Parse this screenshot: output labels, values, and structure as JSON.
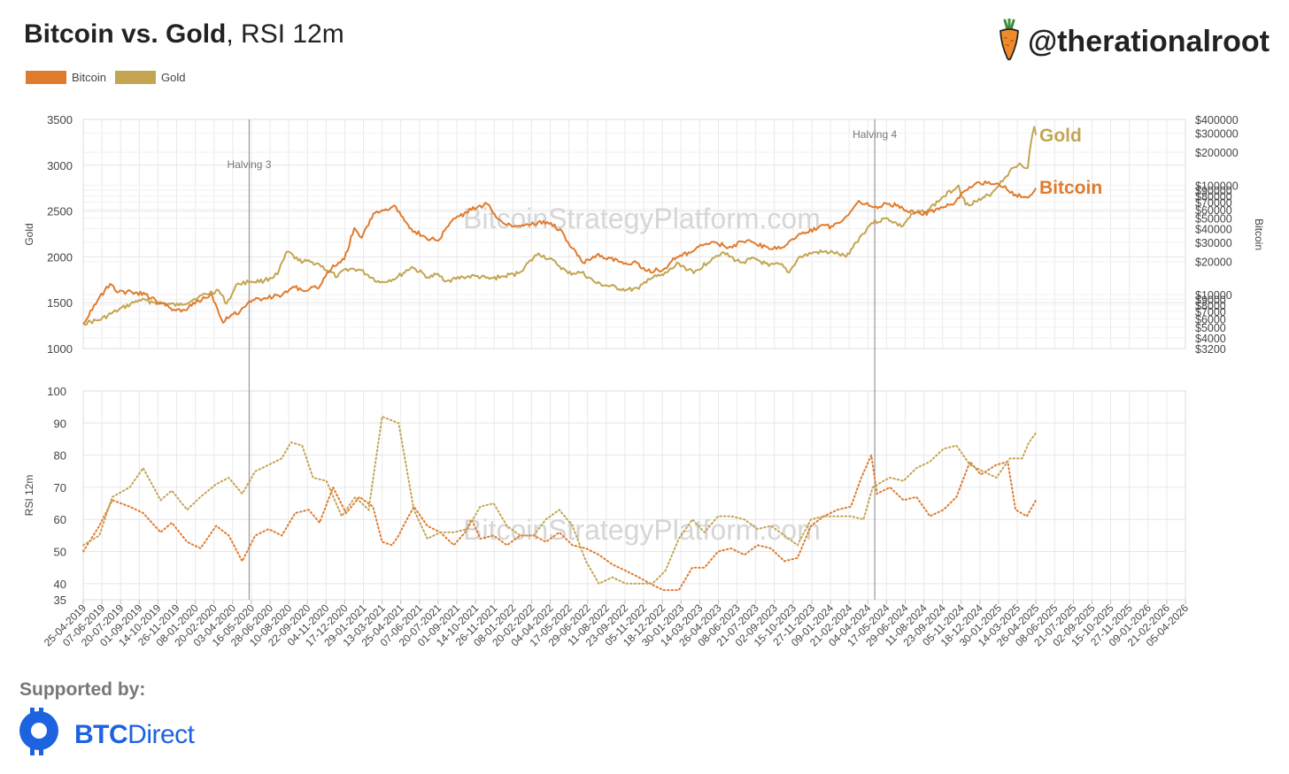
{
  "title": {
    "main": "Bitcoin vs. Gold",
    "sub": ", RSI 12m"
  },
  "brand": {
    "handle": "@therationalroot",
    "icon": "carrot-icon"
  },
  "legend": [
    {
      "label": "Bitcoin",
      "color": "#e07b2e"
    },
    {
      "label": "Gold",
      "color": "#c3a552"
    }
  ],
  "footer": {
    "supported_by": "Supported by:",
    "sponsor_bold": "BTC",
    "sponsor_rest": "Direct",
    "sponsor_color": "#1d63e0"
  },
  "chart_data": [
    {
      "type": "line",
      "panel": "price",
      "watermark": "BitcoinStrategyPlatform.com",
      "ylabel_left": "Gold",
      "ylabel_right": "Bitcoin",
      "ylim_left": [
        1000,
        3500
      ],
      "left_ticks": [
        1000,
        1500,
        2000,
        2500,
        3000,
        3500
      ],
      "right_scale": "log",
      "ylim_right": [
        3200,
        400000
      ],
      "right_ticks": [
        "$400000",
        "$300000",
        "$200000",
        "$100000",
        "$90000",
        "$80000",
        "$70000",
        "$60000",
        "$50000",
        "$40000",
        "$30000",
        "$20000",
        "$10000",
        "$9000",
        "$8000",
        "$7000",
        "$6000",
        "$5000",
        "$4000",
        "$3200"
      ],
      "right_tick_values": [
        400000,
        300000,
        200000,
        100000,
        90000,
        80000,
        70000,
        60000,
        50000,
        40000,
        30000,
        20000,
        10000,
        9000,
        8000,
        7000,
        6000,
        5000,
        4000,
        3200
      ],
      "grid": true,
      "events": [
        {
          "label": "Halving 3",
          "date": "2020-05-11"
        },
        {
          "label": "Halving 4",
          "date": "2024-04-20"
        }
      ],
      "end_labels": [
        {
          "series": "Gold",
          "text": "Gold",
          "color": "#c3a552"
        },
        {
          "series": "Bitcoin",
          "text": "Bitcoin",
          "color": "#e07b2e"
        }
      ],
      "series": [
        {
          "name": "Gold",
          "axis": "left",
          "color": "#c3a552",
          "x": [
            "2019-04-25",
            "2019-06-01",
            "2019-07-15",
            "2019-09-01",
            "2019-10-15",
            "2019-12-01",
            "2020-01-15",
            "2020-03-01",
            "2020-03-20",
            "2020-04-15",
            "2020-05-15",
            "2020-06-15",
            "2020-07-15",
            "2020-08-07",
            "2020-09-01",
            "2020-10-15",
            "2020-11-30",
            "2020-12-20",
            "2021-01-20",
            "2021-03-08",
            "2021-04-15",
            "2021-05-20",
            "2021-06-30",
            "2021-07-15",
            "2021-08-10",
            "2021-09-15",
            "2021-10-15",
            "2021-11-15",
            "2021-12-20",
            "2022-01-20",
            "2022-03-08",
            "2022-04-18",
            "2022-05-15",
            "2022-06-15",
            "2022-07-20",
            "2022-09-26",
            "2022-10-25",
            "2022-11-15",
            "2022-12-20",
            "2023-01-25",
            "2023-02-28",
            "2023-04-13",
            "2023-05-04",
            "2023-06-15",
            "2023-07-20",
            "2023-08-20",
            "2023-09-15",
            "2023-10-06",
            "2023-10-27",
            "2023-12-04",
            "2024-01-15",
            "2024-02-14",
            "2024-03-08",
            "2024-04-12",
            "2024-05-20",
            "2024-06-20",
            "2024-07-17",
            "2024-08-20",
            "2024-09-26",
            "2024-10-30",
            "2024-11-15",
            "2024-12-20",
            "2025-01-15",
            "2025-02-24",
            "2025-03-20",
            "2025-04-07",
            "2025-04-14",
            "2025-04-22",
            "2025-04-26"
          ],
          "y": [
            1275,
            1310,
            1420,
            1530,
            1500,
            1470,
            1560,
            1640,
            1490,
            1710,
            1730,
            1740,
            1810,
            2060,
            1960,
            1930,
            1780,
            1870,
            1860,
            1720,
            1770,
            1890,
            1770,
            1810,
            1740,
            1780,
            1790,
            1760,
            1790,
            1820,
            2040,
            1930,
            1820,
            1830,
            1710,
            1640,
            1650,
            1760,
            1800,
            1930,
            1820,
            1990,
            2050,
            1940,
            1980,
            1900,
            1920,
            1830,
            1990,
            2050,
            2050,
            2000,
            2160,
            2370,
            2420,
            2330,
            2470,
            2510,
            2660,
            2780,
            2570,
            2620,
            2700,
            2930,
            3020,
            2970,
            3230,
            3420,
            3330
          ]
        },
        {
          "name": "Bitcoin",
          "axis": "right",
          "color": "#e07b2e",
          "x": [
            "2019-04-25",
            "2019-05-20",
            "2019-06-26",
            "2019-07-15",
            "2019-08-15",
            "2019-09-15",
            "2019-10-20",
            "2019-11-20",
            "2019-12-15",
            "2020-01-15",
            "2020-02-15",
            "2020-03-12",
            "2020-03-20",
            "2020-04-20",
            "2020-05-11",
            "2020-06-15",
            "2020-07-25",
            "2020-08-20",
            "2020-09-20",
            "2020-10-21",
            "2020-11-20",
            "2020-12-16",
            "2021-01-08",
            "2021-01-25",
            "2021-02-21",
            "2021-03-13",
            "2021-04-14",
            "2021-05-19",
            "2021-06-22",
            "2021-07-20",
            "2021-08-20",
            "2021-09-07",
            "2021-10-20",
            "2021-11-10",
            "2021-12-05",
            "2022-01-10",
            "2022-02-10",
            "2022-03-28",
            "2022-05-01",
            "2022-05-15",
            "2022-06-18",
            "2022-07-20",
            "2022-08-20",
            "2022-09-20",
            "2022-10-20",
            "2022-11-09",
            "2022-12-20",
            "2023-01-20",
            "2023-02-20",
            "2023-03-20",
            "2023-04-14",
            "2023-05-20",
            "2023-06-22",
            "2023-07-15",
            "2023-08-25",
            "2023-09-20",
            "2023-10-25",
            "2023-11-15",
            "2023-12-15",
            "2024-01-15",
            "2024-02-15",
            "2024-03-14",
            "2024-04-15",
            "2024-05-20",
            "2024-06-20",
            "2024-07-05",
            "2024-08-05",
            "2024-09-15",
            "2024-10-20",
            "2024-11-12",
            "2024-12-17",
            "2025-01-20",
            "2025-02-10",
            "2025-03-10",
            "2025-04-08",
            "2025-04-26"
          ],
          "y": [
            5400,
            8000,
            12500,
            10500,
            10500,
            10000,
            8300,
            7300,
            7200,
            8800,
            10000,
            5500,
            6200,
            7000,
            8700,
            9300,
            9800,
            11800,
            10800,
            12000,
            18500,
            21000,
            40500,
            33000,
            55000,
            59000,
            63000,
            40000,
            33000,
            31000,
            47000,
            52000,
            64000,
            67000,
            49000,
            42000,
            44000,
            46000,
            38000,
            30000,
            19500,
            23000,
            21500,
            19000,
            19500,
            16500,
            16800,
            22000,
            24000,
            28000,
            30300,
            27000,
            30500,
            30000,
            26000,
            27000,
            34500,
            37000,
            42000,
            42000,
            52000,
            72000,
            63000,
            67000,
            64000,
            57000,
            54000,
            60000,
            68000,
            88000,
            106000,
            102000,
            96000,
            82000,
            77000,
            94000
          ]
        }
      ]
    },
    {
      "type": "line",
      "panel": "rsi",
      "style": "dotted",
      "watermark": "BitcoinStrategyPlatform.com",
      "ylabel": "RSI 12m",
      "ylim": [
        35,
        100
      ],
      "y_ticks": [
        35,
        40,
        50,
        60,
        70,
        80,
        90,
        100
      ],
      "x_ticks": [
        "25-04-2019",
        "07-06-2019",
        "20-07-2019",
        "01-09-2019",
        "14-10-2019",
        "26-11-2019",
        "08-01-2020",
        "20-02-2020",
        "03-04-2020",
        "16-05-2020",
        "28-06-2020",
        "10-08-2020",
        "22-09-2020",
        "04-11-2020",
        "17-12-2020",
        "29-01-2021",
        "13-03-2021",
        "25-04-2021",
        "07-06-2021",
        "20-07-2021",
        "01-09-2021",
        "14-10-2021",
        "26-11-2021",
        "08-01-2022",
        "20-02-2022",
        "04-04-2022",
        "17-05-2022",
        "29-06-2022",
        "11-08-2022",
        "23-09-2022",
        "05-11-2022",
        "18-12-2022",
        "30-01-2023",
        "14-03-2023",
        "26-04-2023",
        "08-06-2023",
        "21-07-2023",
        "02-09-2023",
        "15-10-2023",
        "27-11-2023",
        "09-01-2024",
        "21-02-2024",
        "04-04-2024",
        "17-05-2024",
        "29-06-2024",
        "11-08-2024",
        "23-09-2024",
        "05-11-2024",
        "18-12-2024",
        "30-01-2025",
        "14-03-2025",
        "26-04-2025",
        "08-06-2025",
        "21-07-2025",
        "02-09-2025",
        "15-10-2025",
        "27-11-2025",
        "09-01-2026",
        "21-02-2026",
        "05-04-2026"
      ],
      "xlim": [
        "2019-04-25",
        "2026-04-05"
      ],
      "series": [
        {
          "name": "Bitcoin",
          "color": "#e07b2e",
          "x": [
            "2019-04-25",
            "2019-06-01",
            "2019-07-01",
            "2019-08-10",
            "2019-09-10",
            "2019-10-20",
            "2019-11-15",
            "2019-12-20",
            "2020-01-20",
            "2020-02-25",
            "2020-03-25",
            "2020-04-25",
            "2020-05-25",
            "2020-06-25",
            "2020-07-25",
            "2020-08-25",
            "2020-09-25",
            "2020-10-20",
            "2020-11-20",
            "2020-12-20",
            "2021-01-20",
            "2021-02-20",
            "2021-03-13",
            "2021-04-05",
            "2021-04-20",
            "2021-05-01",
            "2021-05-25",
            "2021-06-25",
            "2021-07-25",
            "2021-08-25",
            "2021-09-20",
            "2021-10-05",
            "2021-10-25",
            "2021-11-25",
            "2021-12-25",
            "2022-01-25",
            "2022-02-25",
            "2022-03-25",
            "2022-04-25",
            "2022-05-25",
            "2022-06-25",
            "2022-07-25",
            "2022-08-25",
            "2022-09-25",
            "2022-10-25",
            "2022-11-20",
            "2022-12-20",
            "2023-01-25",
            "2023-02-25",
            "2023-03-25",
            "2023-04-25",
            "2023-05-25",
            "2023-06-25",
            "2023-07-25",
            "2023-08-25",
            "2023-09-25",
            "2023-10-25",
            "2023-11-25",
            "2023-12-25",
            "2024-01-25",
            "2024-02-25",
            "2024-03-20",
            "2024-04-12",
            "2024-04-25",
            "2024-05-25",
            "2024-06-25",
            "2024-07-25",
            "2024-08-25",
            "2024-09-25",
            "2024-10-25",
            "2024-11-25",
            "2024-12-20",
            "2025-01-25",
            "2025-02-20",
            "2025-03-10",
            "2025-04-05",
            "2025-04-26"
          ],
          "y": [
            50,
            58,
            66,
            64,
            62,
            56,
            59,
            53,
            51,
            58,
            55,
            47,
            55,
            57,
            55,
            62,
            63,
            59,
            70,
            62,
            67,
            64,
            53,
            52,
            55,
            58,
            64,
            58,
            56,
            52,
            56,
            60,
            54,
            55,
            52,
            55,
            55,
            53,
            56,
            52,
            51,
            49,
            46,
            44,
            42,
            40,
            38,
            38,
            45,
            45,
            50,
            51,
            49,
            52,
            51,
            47,
            48,
            58,
            61,
            63,
            64,
            73,
            80,
            68,
            70,
            66,
            67,
            61,
            63,
            67,
            78,
            74,
            77,
            78,
            63,
            61,
            66
          ]
        },
        {
          "name": "Gold",
          "color": "#c3a552",
          "x": [
            "2019-04-25",
            "2019-06-01",
            "2019-07-01",
            "2019-08-10",
            "2019-09-10",
            "2019-10-20",
            "2019-11-15",
            "2019-12-20",
            "2020-01-20",
            "2020-02-25",
            "2020-03-25",
            "2020-04-25",
            "2020-05-25",
            "2020-06-25",
            "2020-07-25",
            "2020-08-15",
            "2020-09-10",
            "2020-10-05",
            "2020-11-05",
            "2020-12-10",
            "2021-01-10",
            "2021-02-10",
            "2021-03-13",
            "2021-04-20",
            "2021-05-25",
            "2021-06-25",
            "2021-07-25",
            "2021-08-25",
            "2021-09-25",
            "2021-10-25",
            "2021-11-25",
            "2021-12-25",
            "2022-01-25",
            "2022-02-25",
            "2022-03-25",
            "2022-04-25",
            "2022-05-25",
            "2022-06-25",
            "2022-07-25",
            "2022-08-25",
            "2022-09-25",
            "2022-10-25",
            "2022-11-25",
            "2022-12-25",
            "2023-01-25",
            "2023-02-25",
            "2023-03-25",
            "2023-04-25",
            "2023-05-25",
            "2023-06-25",
            "2023-07-25",
            "2023-08-25",
            "2023-09-25",
            "2023-10-25",
            "2023-11-25",
            "2023-12-25",
            "2024-01-25",
            "2024-02-25",
            "2024-03-25",
            "2024-04-15",
            "2024-05-10",
            "2024-05-25",
            "2024-06-25",
            "2024-07-25",
            "2024-08-25",
            "2024-09-25",
            "2024-10-25",
            "2024-11-25",
            "2024-12-25",
            "2025-01-25",
            "2025-02-25",
            "2025-03-25",
            "2025-04-10",
            "2025-04-26"
          ],
          "y": [
            52,
            55,
            67,
            70,
            76,
            66,
            69,
            63,
            67,
            71,
            73,
            68,
            75,
            77,
            79,
            84,
            83,
            73,
            72,
            61,
            67,
            63,
            92,
            90,
            63,
            54,
            56,
            56,
            57,
            64,
            65,
            58,
            55,
            55,
            60,
            63,
            58,
            47,
            40,
            42,
            40,
            40,
            40,
            44,
            54,
            60,
            56,
            61,
            61,
            60,
            57,
            58,
            55,
            52,
            60,
            61,
            61,
            61,
            60,
            70,
            72,
            73,
            72,
            76,
            78,
            82,
            83,
            77,
            75,
            73,
            79,
            79,
            84,
            87
          ]
        }
      ]
    }
  ]
}
